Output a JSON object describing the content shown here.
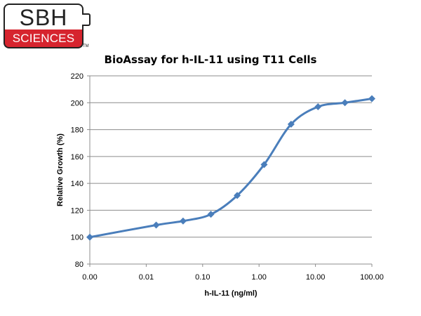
{
  "logo": {
    "top_text": "SBH",
    "bottom_text": "SCIENCES",
    "trademark": "TM",
    "colors": {
      "red": "#d6242e",
      "outline": "#222222"
    }
  },
  "chart_data": {
    "type": "line",
    "title": "BioAssay for h-IL-11 using T11 Cells",
    "xlabel": "h-IL-11 (ng/ml)",
    "ylabel": "Relative Growth (%)",
    "x_scale": "log",
    "x_ticks": [
      "0.00",
      "0.01",
      "0.10",
      "1.00",
      "10.00",
      "100.00"
    ],
    "y_ticks": [
      "80",
      "100",
      "120",
      "140",
      "160",
      "180",
      "200",
      "220"
    ],
    "ylim": [
      80,
      220
    ],
    "grid": "horizontal",
    "legend": "none",
    "color": "#4a7ebb",
    "series": [
      {
        "x": [
          0.001,
          0.015,
          0.045,
          0.14,
          0.41,
          1.23,
          3.7,
          11.1,
          33.3,
          100
        ],
        "values": [
          100,
          109,
          112,
          117,
          131,
          154,
          184,
          197,
          200,
          203
        ]
      }
    ]
  }
}
